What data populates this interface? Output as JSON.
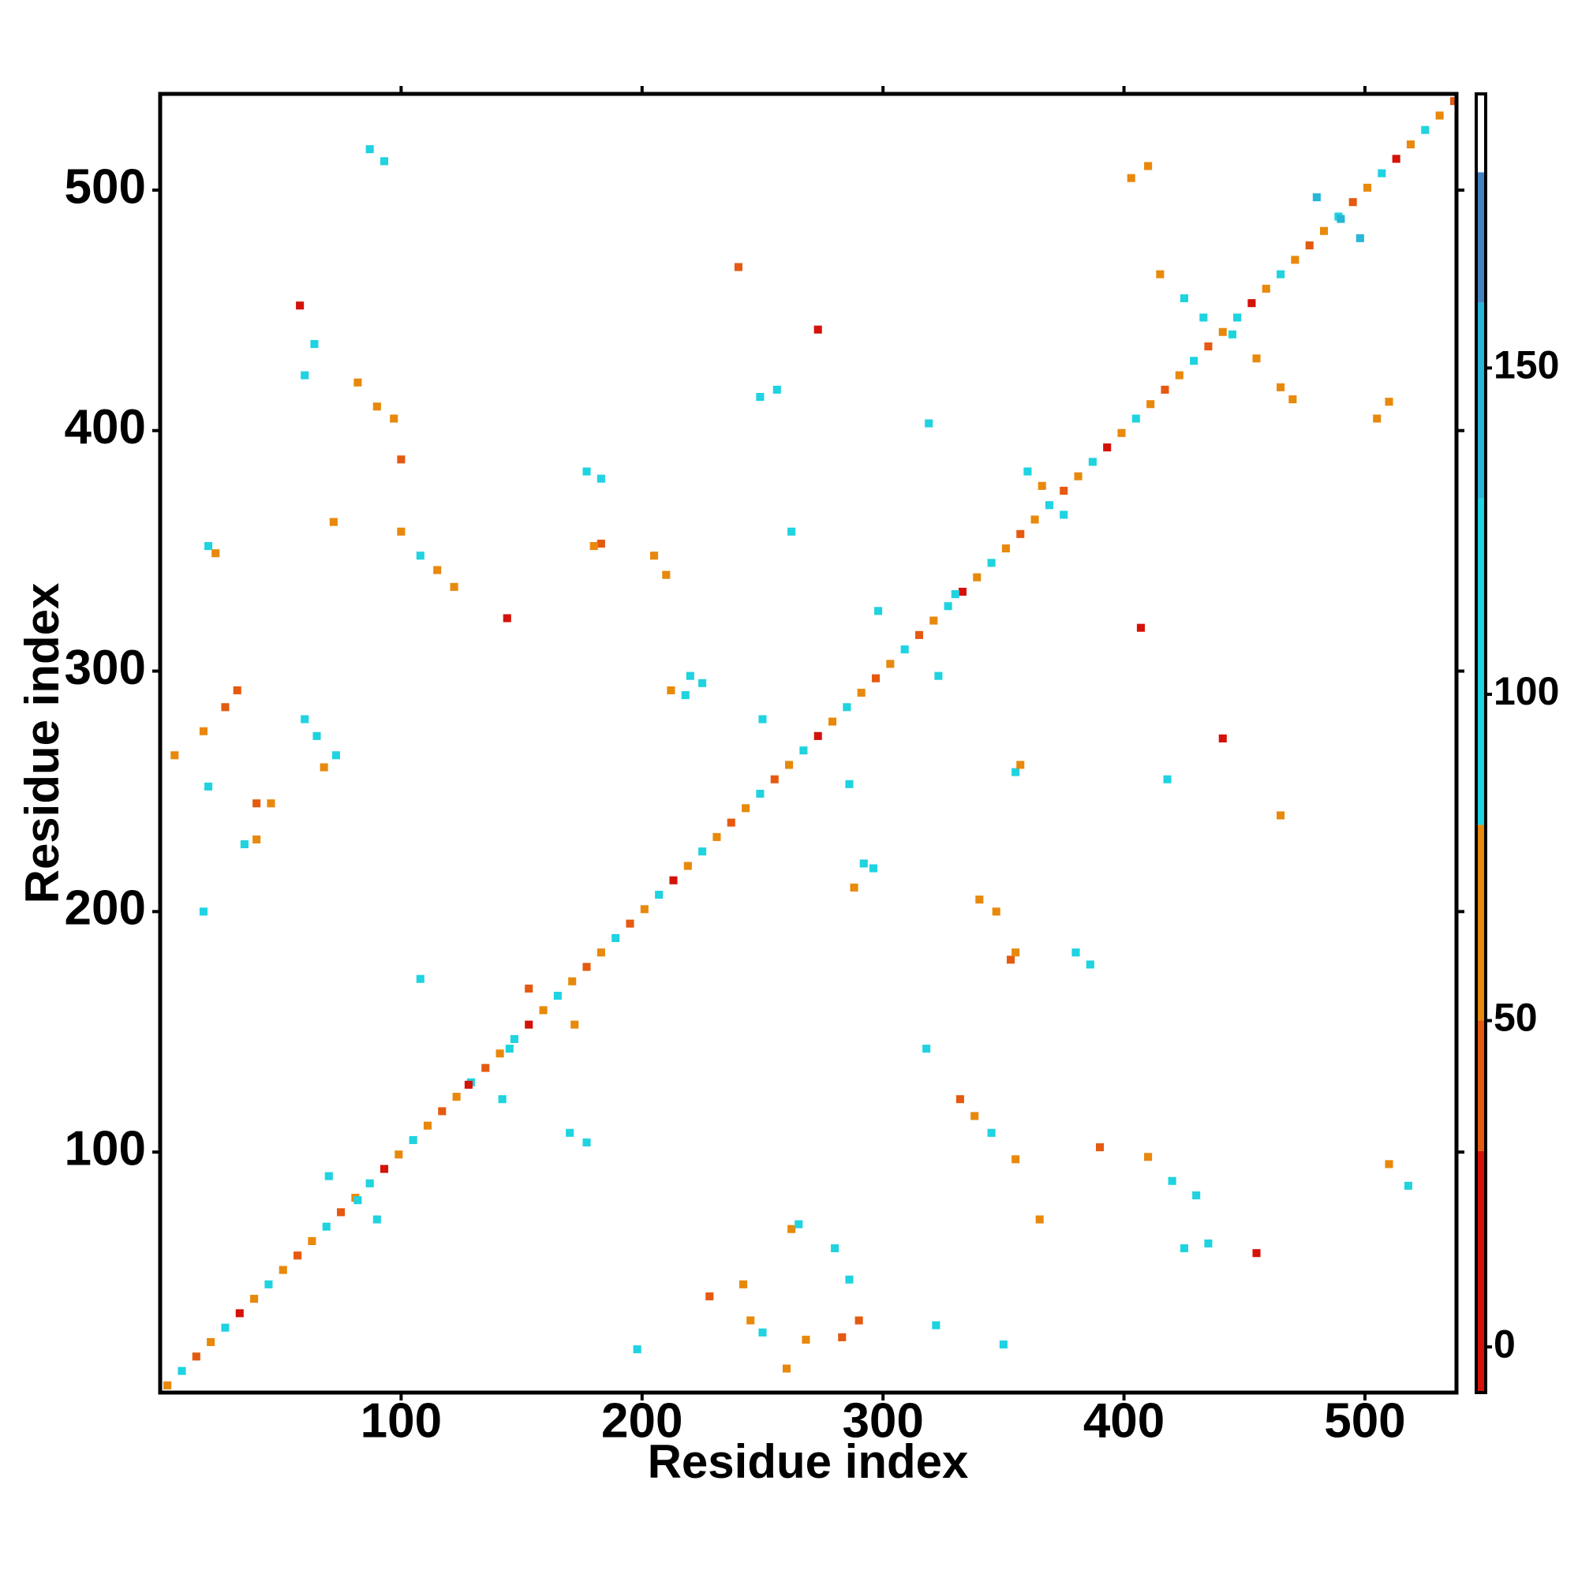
{
  "chart_data": {
    "type": "contact_map",
    "x_label": "Residue index",
    "y_label": "Residue index",
    "xlim": [
      0,
      538
    ],
    "ylim": [
      0,
      540
    ],
    "xticks": [
      100,
      200,
      300,
      400,
      500
    ],
    "yticks": [
      100,
      200,
      300,
      400,
      500
    ],
    "colorbar": {
      "lim": [
        -7,
        192
      ],
      "ticks": [
        0,
        50,
        100,
        150
      ],
      "segments": [
        {
          "from": -7,
          "to": 30,
          "color": "#d41208"
        },
        {
          "from": 30,
          "to": 50,
          "color": "#e55a10"
        },
        {
          "from": 50,
          "to": 80,
          "color": "#e8890c"
        },
        {
          "from": 80,
          "to": 130,
          "color": "#1fd3e0"
        },
        {
          "from": 130,
          "to": 160,
          "color": "#28b6d8"
        },
        {
          "from": 160,
          "to": 180,
          "color": "#4382bf"
        },
        {
          "from": 180,
          "to": 192,
          "color": "#ffffff"
        }
      ]
    },
    "points": [
      [
        3,
        3,
        60
      ],
      [
        9,
        9,
        90
      ],
      [
        15,
        15,
        45
      ],
      [
        21,
        21,
        70
      ],
      [
        27,
        27,
        85
      ],
      [
        33,
        33,
        25
      ],
      [
        39,
        39,
        55
      ],
      [
        45,
        45,
        90
      ],
      [
        51,
        51,
        65
      ],
      [
        57,
        57,
        40
      ],
      [
        63,
        63,
        60
      ],
      [
        69,
        69,
        90
      ],
      [
        75,
        75,
        45
      ],
      [
        81,
        81,
        70
      ],
      [
        87,
        87,
        85
      ],
      [
        93,
        93,
        25
      ],
      [
        99,
        99,
        55
      ],
      [
        105,
        105,
        90
      ],
      [
        111,
        111,
        65
      ],
      [
        117,
        117,
        40
      ],
      [
        123,
        123,
        60
      ],
      [
        129,
        129,
        90
      ],
      [
        135,
        135,
        45
      ],
      [
        141,
        141,
        70
      ],
      [
        147,
        147,
        85
      ],
      [
        153,
        153,
        25
      ],
      [
        159,
        159,
        55
      ],
      [
        165,
        165,
        90
      ],
      [
        171,
        171,
        65
      ],
      [
        177,
        177,
        40
      ],
      [
        183,
        183,
        60
      ],
      [
        189,
        189,
        90
      ],
      [
        195,
        195,
        45
      ],
      [
        201,
        201,
        70
      ],
      [
        207,
        207,
        85
      ],
      [
        213,
        213,
        25
      ],
      [
        219,
        219,
        55
      ],
      [
        225,
        225,
        90
      ],
      [
        231,
        231,
        65
      ],
      [
        237,
        237,
        40
      ],
      [
        243,
        243,
        60
      ],
      [
        249,
        249,
        90
      ],
      [
        255,
        255,
        45
      ],
      [
        261,
        261,
        70
      ],
      [
        267,
        267,
        85
      ],
      [
        273,
        273,
        25
      ],
      [
        279,
        279,
        55
      ],
      [
        285,
        285,
        90
      ],
      [
        291,
        291,
        65
      ],
      [
        297,
        297,
        40
      ],
      [
        303,
        303,
        60
      ],
      [
        309,
        309,
        90
      ],
      [
        315,
        315,
        45
      ],
      [
        321,
        321,
        70
      ],
      [
        327,
        327,
        85
      ],
      [
        333,
        333,
        25
      ],
      [
        339,
        339,
        55
      ],
      [
        345,
        345,
        90
      ],
      [
        351,
        351,
        65
      ],
      [
        357,
        357,
        40
      ],
      [
        363,
        363,
        60
      ],
      [
        369,
        369,
        90
      ],
      [
        375,
        375,
        45
      ],
      [
        381,
        381,
        70
      ],
      [
        387,
        387,
        85
      ],
      [
        393,
        393,
        25
      ],
      [
        399,
        399,
        55
      ],
      [
        405,
        405,
        90
      ],
      [
        411,
        411,
        65
      ],
      [
        417,
        417,
        40
      ],
      [
        423,
        423,
        60
      ],
      [
        429,
        429,
        90
      ],
      [
        435,
        435,
        45
      ],
      [
        441,
        441,
        70
      ],
      [
        447,
        447,
        85
      ],
      [
        453,
        453,
        25
      ],
      [
        459,
        459,
        55
      ],
      [
        465,
        465,
        90
      ],
      [
        471,
        471,
        65
      ],
      [
        477,
        477,
        40
      ],
      [
        483,
        483,
        60
      ],
      [
        489,
        489,
        90
      ],
      [
        495,
        495,
        45
      ],
      [
        501,
        501,
        70
      ],
      [
        507,
        507,
        85
      ],
      [
        513,
        513,
        25
      ],
      [
        519,
        519,
        55
      ],
      [
        525,
        525,
        90
      ],
      [
        531,
        531,
        65
      ],
      [
        537,
        537,
        40
      ],
      [
        87,
        517,
        95
      ],
      [
        93,
        512,
        90
      ],
      [
        58,
        452,
        20
      ],
      [
        60,
        423,
        90
      ],
      [
        64,
        436,
        90
      ],
      [
        82,
        420,
        60
      ],
      [
        90,
        410,
        50
      ],
      [
        97,
        405,
        55
      ],
      [
        100,
        388,
        45
      ],
      [
        20,
        352,
        90
      ],
      [
        23,
        349,
        60
      ],
      [
        100,
        358,
        60
      ],
      [
        108,
        348,
        85
      ],
      [
        115,
        342,
        60
      ],
      [
        122,
        335,
        50
      ],
      [
        72,
        362,
        60
      ],
      [
        18,
        275,
        60
      ],
      [
        27,
        285,
        45
      ],
      [
        32,
        292,
        40
      ],
      [
        60,
        280,
        90
      ],
      [
        65,
        273,
        90
      ],
      [
        73,
        265,
        85
      ],
      [
        68,
        260,
        60
      ],
      [
        6,
        265,
        60
      ],
      [
        20,
        252,
        90
      ],
      [
        40,
        245,
        45
      ],
      [
        46,
        245,
        50
      ],
      [
        40,
        230,
        60
      ],
      [
        35,
        228,
        90
      ],
      [
        18,
        200,
        90
      ],
      [
        108,
        172,
        90
      ],
      [
        145,
        143,
        90
      ],
      [
        153,
        168,
        40
      ],
      [
        172,
        153,
        60
      ],
      [
        142,
        122,
        90
      ],
      [
        128,
        128,
        20
      ],
      [
        170,
        108,
        90
      ],
      [
        177,
        104,
        90
      ],
      [
        177,
        383,
        90
      ],
      [
        183,
        380,
        90
      ],
      [
        183,
        353,
        45
      ],
      [
        180,
        352,
        50
      ],
      [
        205,
        348,
        50
      ],
      [
        210,
        340,
        60
      ],
      [
        212,
        292,
        60
      ],
      [
        220,
        298,
        90
      ],
      [
        225,
        295,
        85
      ],
      [
        218,
        290,
        90
      ],
      [
        240,
        468,
        45
      ],
      [
        273,
        442,
        20
      ],
      [
        256,
        417,
        90
      ],
      [
        249,
        414,
        90
      ],
      [
        262,
        358,
        90
      ],
      [
        250,
        280,
        90
      ],
      [
        298,
        325,
        90
      ],
      [
        323,
        298,
        90
      ],
      [
        286,
        253,
        90
      ],
      [
        292,
        220,
        90
      ],
      [
        296,
        218,
        90
      ],
      [
        288,
        210,
        60
      ],
      [
        340,
        205,
        50
      ],
      [
        347,
        200,
        60
      ],
      [
        353,
        180,
        45
      ],
      [
        355,
        183,
        50
      ],
      [
        380,
        183,
        90
      ],
      [
        386,
        178,
        90
      ],
      [
        355,
        258,
        90
      ],
      [
        357,
        261,
        60
      ],
      [
        360,
        383,
        90
      ],
      [
        366,
        377,
        60
      ],
      [
        375,
        365,
        90
      ],
      [
        403,
        505,
        50
      ],
      [
        410,
        510,
        60
      ],
      [
        415,
        465,
        60
      ],
      [
        425,
        455,
        85
      ],
      [
        433,
        447,
        90
      ],
      [
        455,
        430,
        60
      ],
      [
        465,
        418,
        60
      ],
      [
        470,
        413,
        50
      ],
      [
        505,
        405,
        60
      ],
      [
        510,
        412,
        50
      ],
      [
        418,
        255,
        90
      ],
      [
        441,
        272,
        20
      ],
      [
        465,
        240,
        60
      ],
      [
        332,
        122,
        45
      ],
      [
        338,
        115,
        60
      ],
      [
        345,
        108,
        85
      ],
      [
        355,
        97,
        60
      ],
      [
        390,
        102,
        45
      ],
      [
        410,
        98,
        60
      ],
      [
        420,
        88,
        85
      ],
      [
        430,
        82,
        90
      ],
      [
        425,
        60,
        90
      ],
      [
        435,
        62,
        90
      ],
      [
        455,
        58,
        20
      ],
      [
        510,
        95,
        60
      ],
      [
        518,
        86,
        90
      ],
      [
        228,
        40,
        45
      ],
      [
        242,
        45,
        60
      ],
      [
        262,
        68,
        60
      ],
      [
        265,
        70,
        90
      ],
      [
        280,
        60,
        90
      ],
      [
        286,
        47,
        90
      ],
      [
        260,
        10,
        60
      ],
      [
        268,
        22,
        60
      ],
      [
        283,
        23,
        45
      ],
      [
        290,
        30,
        45
      ],
      [
        250,
        25,
        90
      ],
      [
        245,
        30,
        60
      ],
      [
        198,
        18,
        90
      ],
      [
        350,
        20,
        90
      ],
      [
        322,
        28,
        90
      ],
      [
        330,
        332,
        90
      ],
      [
        490,
        488,
        140
      ],
      [
        480,
        497,
        140
      ],
      [
        498,
        480,
        140
      ],
      [
        82,
        80,
        90
      ],
      [
        70,
        90,
        90
      ],
      [
        90,
        72,
        90
      ],
      [
        445,
        440,
        90
      ],
      [
        365,
        72,
        60
      ],
      [
        318,
        143,
        90
      ],
      [
        407,
        318,
        20
      ],
      [
        319,
        403,
        90
      ],
      [
        144,
        322,
        20
      ]
    ]
  }
}
